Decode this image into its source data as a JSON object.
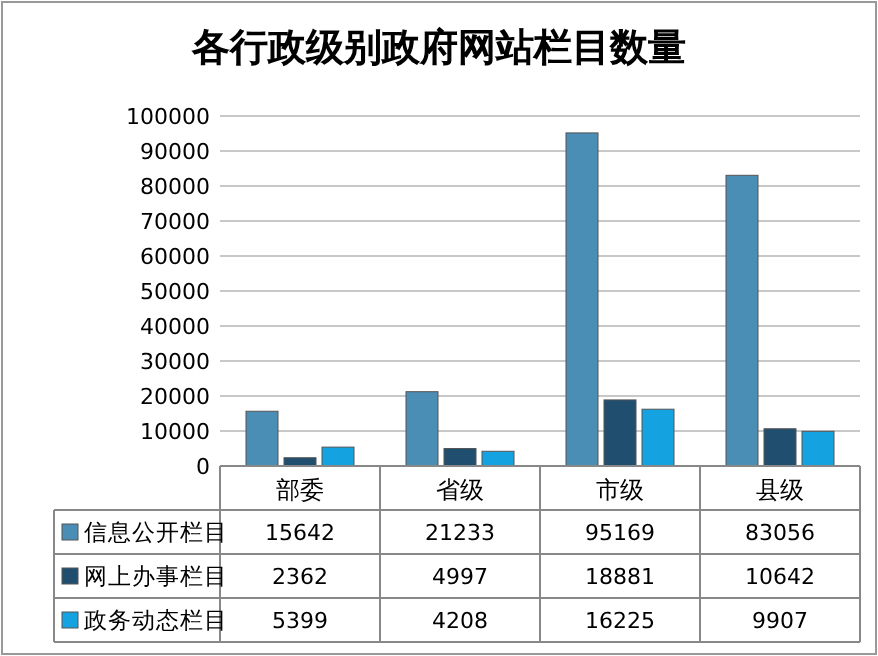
{
  "chart_data": {
    "type": "bar",
    "title": "各行政级别政府网站栏目数量",
    "categories": [
      "部委",
      "省级",
      "市级",
      "县级"
    ],
    "series": [
      {
        "name": "信息公开栏目",
        "color": "#4a8db5",
        "values": [
          15642,
          21233,
          95169,
          83056
        ]
      },
      {
        "name": "网上办事栏目",
        "color": "#1f4e6e",
        "values": [
          2362,
          4997,
          18881,
          10642
        ]
      },
      {
        "name": "政务动态栏目",
        "color": "#14a3e0",
        "values": [
          5399,
          4208,
          16225,
          9907
        ]
      }
    ],
    "ylim": [
      0,
      100000
    ],
    "yticks": [
      0,
      10000,
      20000,
      30000,
      40000,
      50000,
      60000,
      70000,
      80000,
      90000,
      100000
    ],
    "grid": "y",
    "legend": "bottom",
    "data_labels": true
  }
}
